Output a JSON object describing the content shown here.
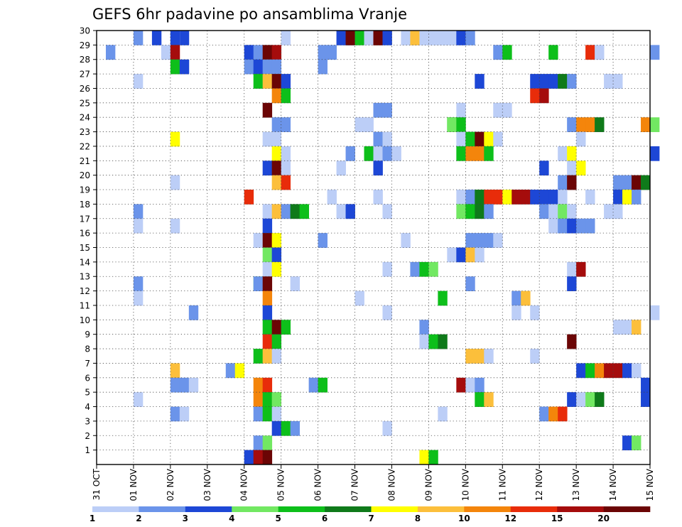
{
  "chart_data": {
    "type": "heatmap",
    "title": "GEFS 6hr padavine po ansamblima Vranje",
    "xlabel": "",
    "ylabel": "",
    "x_tick_labels": [
      "31 OCT",
      "01 NOV",
      "02 NOV",
      "03 NOV",
      "04 NOV",
      "05 NOV",
      "06 NOV",
      "07 NOV",
      "08 NOV",
      "09 NOV",
      "10 NOV",
      "11 NOV",
      "12 NOV",
      "13 NOV",
      "14 NOV",
      "15 NOV"
    ],
    "x_range_days": [
      0,
      15
    ],
    "y_tick_labels": [
      "1",
      "2",
      "3",
      "4",
      "5",
      "6",
      "7",
      "8",
      "9",
      "10",
      "11",
      "12",
      "13",
      "14",
      "15",
      "16",
      "17",
      "18",
      "19",
      "20",
      "21",
      "22",
      "23",
      "24",
      "25",
      "26",
      "27",
      "28",
      "29",
      "30"
    ],
    "y_range": [
      0,
      30
    ],
    "grid": "dotted",
    "step_hours": 6,
    "colorbar": {
      "colors": [
        "#bccef7",
        "#6b94ea",
        "#1d47d6",
        "#72e862",
        "#0dbf1a",
        "#0f7a1a",
        "#ffff00",
        "#fcbf3b",
        "#f4850b",
        "#e82c0a",
        "#a50c0c",
        "#6b0505"
      ],
      "labels": [
        "1",
        "2",
        "3",
        "4",
        "5",
        "6",
        "7",
        "8",
        "10",
        "12",
        "15",
        "20"
      ]
    },
    "cells": [
      [
        30,
        1,
        4
      ],
      [
        29,
        1,
        1
      ],
      [
        30,
        2,
        9
      ],
      [
        30,
        2,
        6
      ],
      [
        30,
        0,
        8
      ],
      [
        30,
        2,
        8
      ],
      [
        30,
        0,
        20
      ],
      [
        30,
        2,
        26
      ],
      [
        30,
        2,
        27
      ],
      [
        30,
        11,
        27
      ],
      [
        30,
        4,
        28
      ],
      [
        30,
        0,
        29
      ],
      [
        30,
        9,
        30
      ],
      [
        30,
        11,
        30
      ],
      [
        30,
        2,
        31
      ],
      [
        30,
        0,
        33
      ],
      [
        30,
        0,
        34
      ],
      [
        30,
        7,
        34
      ],
      [
        30,
        0,
        35
      ],
      [
        30,
        0,
        36
      ],
      [
        30,
        0,
        37
      ],
      [
        30,
        0,
        38
      ],
      [
        30,
        2,
        39
      ],
      [
        30,
        1,
        40
      ],
      [
        29,
        0,
        7
      ],
      [
        29,
        10,
        8
      ],
      [
        29,
        2,
        16
      ],
      [
        29,
        1,
        17
      ],
      [
        29,
        11,
        18
      ],
      [
        29,
        10,
        19
      ],
      [
        29,
        1,
        24
      ],
      [
        29,
        1,
        25
      ],
      [
        29,
        1,
        43
      ],
      [
        29,
        4,
        44
      ],
      [
        29,
        4,
        49
      ],
      [
        29,
        9,
        53
      ],
      [
        29,
        0,
        54
      ],
      [
        29,
        1,
        60
      ],
      [
        28,
        4,
        8
      ],
      [
        28,
        2,
        9
      ],
      [
        28,
        1,
        16
      ],
      [
        28,
        2,
        17
      ],
      [
        28,
        1,
        18
      ],
      [
        28,
        1,
        19
      ],
      [
        28,
        1,
        24
      ],
      [
        27,
        0,
        4
      ],
      [
        27,
        4,
        17
      ],
      [
        27,
        7,
        18
      ],
      [
        27,
        11,
        19
      ],
      [
        27,
        2,
        20
      ],
      [
        27,
        2,
        41
      ],
      [
        27,
        2,
        47
      ],
      [
        27,
        2,
        48
      ],
      [
        27,
        2,
        49
      ],
      [
        27,
        5,
        50
      ],
      [
        27,
        1,
        51
      ],
      [
        27,
        0,
        55
      ],
      [
        27,
        0,
        56
      ],
      [
        26,
        8,
        19
      ],
      [
        26,
        4,
        20
      ],
      [
        26,
        9,
        47
      ],
      [
        26,
        10,
        48
      ],
      [
        25,
        11,
        18
      ],
      [
        25,
        1,
        30
      ],
      [
        25,
        1,
        31
      ],
      [
        25,
        0,
        39
      ],
      [
        25,
        0,
        43
      ],
      [
        25,
        0,
        44
      ],
      [
        24,
        1,
        19
      ],
      [
        24,
        1,
        20
      ],
      [
        24,
        0,
        28
      ],
      [
        24,
        0,
        29
      ],
      [
        24,
        4,
        38
      ],
      [
        24,
        3,
        38
      ],
      [
        24,
        4,
        39
      ],
      [
        24,
        1,
        51
      ],
      [
        24,
        8,
        52
      ],
      [
        24,
        8,
        53
      ],
      [
        24,
        5,
        54
      ],
      [
        24,
        8,
        59
      ],
      [
        24,
        3,
        60
      ],
      [
        23,
        6,
        8
      ],
      [
        23,
        0,
        18
      ],
      [
        23,
        0,
        19
      ],
      [
        23,
        1,
        30
      ],
      [
        23,
        0,
        31
      ],
      [
        23,
        0,
        39
      ],
      [
        23,
        4,
        40
      ],
      [
        23,
        11,
        41
      ],
      [
        23,
        6,
        42
      ],
      [
        23,
        0,
        43
      ],
      [
        23,
        0,
        52
      ],
      [
        22,
        6,
        19
      ],
      [
        22,
        0,
        20
      ],
      [
        22,
        1,
        27
      ],
      [
        22,
        4,
        29
      ],
      [
        22,
        0,
        30
      ],
      [
        22,
        1,
        31
      ],
      [
        22,
        0,
        32
      ],
      [
        22,
        4,
        39
      ],
      [
        22,
        8,
        40
      ],
      [
        22,
        8,
        41
      ],
      [
        22,
        4,
        42
      ],
      [
        22,
        0,
        50
      ],
      [
        22,
        6,
        51
      ],
      [
        22,
        2,
        60
      ],
      [
        21,
        2,
        18
      ],
      [
        21,
        11,
        19
      ],
      [
        21,
        0,
        20
      ],
      [
        21,
        0,
        26
      ],
      [
        21,
        2,
        30
      ],
      [
        21,
        2,
        48
      ],
      [
        21,
        0,
        51
      ],
      [
        21,
        6,
        52
      ],
      [
        20,
        0,
        8
      ],
      [
        20,
        7,
        19
      ],
      [
        20,
        9,
        20
      ],
      [
        20,
        1,
        50
      ],
      [
        20,
        11,
        51
      ],
      [
        20,
        1,
        56
      ],
      [
        20,
        1,
        57
      ],
      [
        20,
        11,
        58
      ],
      [
        20,
        5,
        59
      ],
      [
        19,
        9,
        16
      ],
      [
        19,
        0,
        25
      ],
      [
        19,
        0,
        30
      ],
      [
        19,
        0,
        39
      ],
      [
        19,
        1,
        40
      ],
      [
        19,
        5,
        41
      ],
      [
        19,
        9,
        42
      ],
      [
        19,
        9,
        43
      ],
      [
        19,
        6,
        44
      ],
      [
        19,
        10,
        45
      ],
      [
        19,
        10,
        46
      ],
      [
        19,
        2,
        47
      ],
      [
        19,
        2,
        48
      ],
      [
        19,
        2,
        49
      ],
      [
        19,
        0,
        50
      ],
      [
        19,
        0,
        53
      ],
      [
        19,
        2,
        56
      ],
      [
        19,
        6,
        57
      ],
      [
        19,
        1,
        58
      ],
      [
        18,
        1,
        4
      ],
      [
        18,
        0,
        18
      ],
      [
        18,
        7,
        19
      ],
      [
        18,
        1,
        20
      ],
      [
        18,
        5,
        21
      ],
      [
        18,
        4,
        22
      ],
      [
        18,
        0,
        26
      ],
      [
        18,
        2,
        27
      ],
      [
        18,
        0,
        31
      ],
      [
        18,
        3,
        39
      ],
      [
        18,
        4,
        40
      ],
      [
        18,
        5,
        41
      ],
      [
        18,
        1,
        42
      ],
      [
        18,
        1,
        48
      ],
      [
        18,
        0,
        49
      ],
      [
        18,
        3,
        50
      ],
      [
        18,
        0,
        51
      ],
      [
        18,
        0,
        55
      ],
      [
        18,
        0,
        56
      ],
      [
        17,
        0,
        4
      ],
      [
        17,
        0,
        8
      ],
      [
        17,
        2,
        18
      ],
      [
        17,
        0,
        49
      ],
      [
        17,
        1,
        50
      ],
      [
        17,
        2,
        51
      ],
      [
        17,
        1,
        52
      ],
      [
        17,
        1,
        53
      ],
      [
        16,
        0,
        17
      ],
      [
        16,
        11,
        18
      ],
      [
        16,
        6,
        19
      ],
      [
        16,
        1,
        24
      ],
      [
        16,
        0,
        33
      ],
      [
        16,
        1,
        40
      ],
      [
        16,
        1,
        41
      ],
      [
        16,
        1,
        42
      ],
      [
        16,
        0,
        43
      ],
      [
        15,
        3,
        18
      ],
      [
        15,
        2,
        19
      ],
      [
        15,
        0,
        38
      ],
      [
        15,
        2,
        39
      ],
      [
        15,
        7,
        40
      ],
      [
        15,
        0,
        41
      ],
      [
        14,
        0,
        18
      ],
      [
        14,
        6,
        19
      ],
      [
        14,
        0,
        31
      ],
      [
        14,
        1,
        34
      ],
      [
        14,
        4,
        35
      ],
      [
        14,
        3,
        36
      ],
      [
        14,
        0,
        51
      ],
      [
        14,
        10,
        52
      ],
      [
        13,
        3,
        17
      ],
      [
        13,
        1,
        17
      ],
      [
        13,
        11,
        18
      ],
      [
        13,
        1,
        4
      ],
      [
        13,
        0,
        21
      ],
      [
        13,
        1,
        40
      ],
      [
        13,
        2,
        51
      ],
      [
        12,
        0,
        4
      ],
      [
        12,
        8,
        18
      ],
      [
        12,
        0,
        28
      ],
      [
        12,
        4,
        37
      ],
      [
        12,
        1,
        45
      ],
      [
        12,
        7,
        46
      ],
      [
        11,
        2,
        18
      ],
      [
        11,
        1,
        10
      ],
      [
        11,
        0,
        31
      ],
      [
        11,
        0,
        45
      ],
      [
        11,
        0,
        47
      ],
      [
        11,
        0,
        60
      ],
      [
        10,
        4,
        18
      ],
      [
        10,
        11,
        19
      ],
      [
        10,
        4,
        20
      ],
      [
        10,
        1,
        35
      ],
      [
        10,
        0,
        56
      ],
      [
        10,
        0,
        57
      ],
      [
        10,
        7,
        58
      ],
      [
        9,
        9,
        18
      ],
      [
        9,
        4,
        19
      ],
      [
        9,
        0,
        35
      ],
      [
        9,
        4,
        36
      ],
      [
        9,
        5,
        37
      ],
      [
        9,
        11,
        51
      ],
      [
        8,
        4,
        17
      ],
      [
        8,
        7,
        18
      ],
      [
        8,
        0,
        19
      ],
      [
        8,
        7,
        40
      ],
      [
        8,
        7,
        41
      ],
      [
        8,
        0,
        42
      ],
      [
        8,
        0,
        47
      ],
      [
        7,
        7,
        8
      ],
      [
        7,
        1,
        14
      ],
      [
        7,
        6,
        15
      ],
      [
        7,
        2,
        52
      ],
      [
        7,
        4,
        53
      ],
      [
        7,
        8,
        54
      ],
      [
        7,
        10,
        55
      ],
      [
        7,
        10,
        56
      ],
      [
        7,
        2,
        57
      ],
      [
        7,
        0,
        58
      ],
      [
        6,
        1,
        8
      ],
      [
        6,
        1,
        9
      ],
      [
        6,
        0,
        10
      ],
      [
        6,
        8,
        17
      ],
      [
        6,
        9,
        18
      ],
      [
        6,
        1,
        23
      ],
      [
        6,
        4,
        24
      ],
      [
        6,
        10,
        39
      ],
      [
        6,
        0,
        40
      ],
      [
        6,
        1,
        41
      ],
      [
        6,
        2,
        59
      ],
      [
        5,
        0,
        4
      ],
      [
        5,
        8,
        17
      ],
      [
        5,
        4,
        18
      ],
      [
        5,
        3,
        19
      ],
      [
        5,
        4,
        41
      ],
      [
        5,
        7,
        42
      ],
      [
        5,
        2,
        51
      ],
      [
        5,
        0,
        52
      ],
      [
        5,
        3,
        53
      ],
      [
        5,
        5,
        54
      ],
      [
        5,
        2,
        59
      ],
      [
        4,
        1,
        8
      ],
      [
        4,
        0,
        9
      ],
      [
        4,
        1,
        17
      ],
      [
        4,
        4,
        18
      ],
      [
        4,
        0,
        19
      ],
      [
        4,
        0,
        37
      ],
      [
        4,
        1,
        48
      ],
      [
        4,
        8,
        49
      ],
      [
        4,
        9,
        50
      ],
      [
        3,
        2,
        19
      ],
      [
        3,
        4,
        20
      ],
      [
        3,
        1,
        21
      ],
      [
        3,
        0,
        31
      ],
      [
        2,
        1,
        17
      ],
      [
        2,
        3,
        18
      ],
      [
        2,
        2,
        57
      ],
      [
        2,
        3,
        58
      ],
      [
        1,
        2,
        16
      ],
      [
        1,
        10,
        17
      ],
      [
        1,
        11,
        18
      ],
      [
        1,
        6,
        35
      ],
      [
        1,
        4,
        36
      ]
    ]
  }
}
